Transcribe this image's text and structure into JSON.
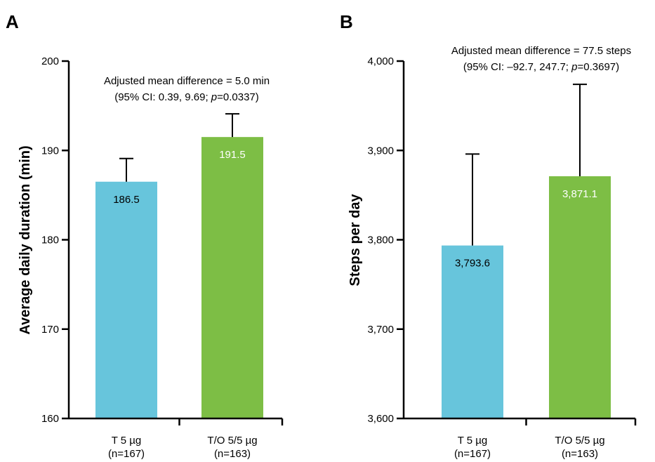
{
  "chart_data": [
    {
      "panel": "A",
      "type": "bar",
      "categories": [
        "T 5 µg",
        "T/O 5/5 µg"
      ],
      "category_subs": [
        "(n=167)",
        "(n=163)"
      ],
      "values": [
        186.5,
        191.5
      ],
      "value_labels": [
        "186.5",
        "191.5"
      ],
      "error_upper": [
        189.1,
        194.1
      ],
      "ylabel": "Average daily duration (min)",
      "ylim": [
        160,
        200
      ],
      "yticks": [
        160,
        170,
        180,
        190,
        200
      ],
      "ytick_labels": [
        "160",
        "170",
        "180",
        "190",
        "200"
      ],
      "annotation": {
        "line1": "Adjusted mean difference = 5.0 min",
        "line2_prefix": "(95% CI: 0.39, 9.69; ",
        "line2_italic": "p",
        "line2_suffix": "=0.0337)"
      },
      "colors": [
        "#67c5dc",
        "#7dbe45"
      ],
      "label_colors": [
        "#000000",
        "#ffffff"
      ]
    },
    {
      "panel": "B",
      "type": "bar",
      "categories": [
        "T 5 µg",
        "T/O 5/5 µg"
      ],
      "category_subs": [
        "(n=167)",
        "(n=163)"
      ],
      "values": [
        3793.6,
        3871.1
      ],
      "value_labels": [
        "3,793.6",
        "3,871.1"
      ],
      "error_upper": [
        3896,
        3974
      ],
      "ylabel": "Steps per day",
      "ylim": [
        3600,
        4000
      ],
      "yticks": [
        3600,
        3700,
        3800,
        3900,
        4000
      ],
      "ytick_labels": [
        "3,600",
        "3,700",
        "3,800",
        "3,900",
        "4,000"
      ],
      "annotation": {
        "line1": "Adjusted mean difference = 77.5 steps",
        "line2_prefix": "(95% CI: –92.7, 247.7; ",
        "line2_italic": "p",
        "line2_suffix": "=0.3697)"
      },
      "colors": [
        "#67c5dc",
        "#7dbe45"
      ],
      "label_colors": [
        "#000000",
        "#ffffff"
      ]
    }
  ]
}
